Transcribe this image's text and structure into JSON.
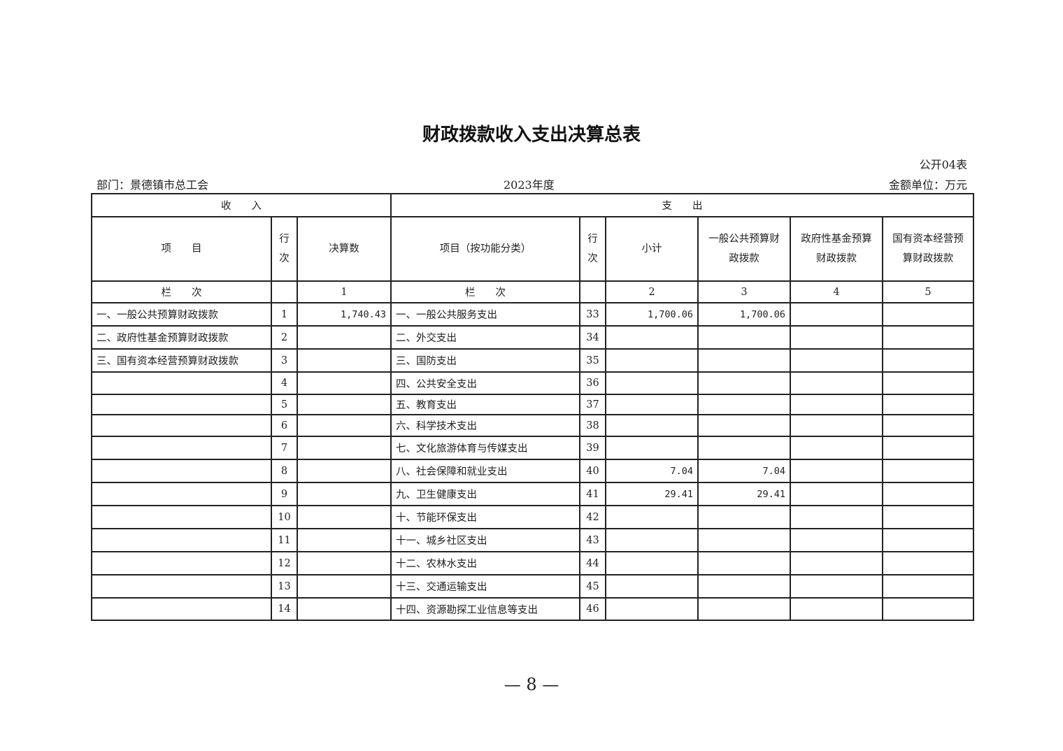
{
  "title": "财政拨款收入支出决算总表",
  "form_no": "公开04表",
  "department": "部门：景德镇市总工会",
  "year": "2023年度",
  "unit": "金额单位：万元",
  "header": {
    "income": "收　　入",
    "expense": "支　　出",
    "income_item": "项　　目",
    "row_no": "行次",
    "final_amount": "决算数",
    "expense_item": "项目（按功能分类）",
    "subtotal": "小计",
    "general_budget": "一般公共预算财政拨款",
    "gov_fund": "政府性基金预算财政拨款",
    "state_capital": "国有资本经营预算财政拨款",
    "col_label": "栏　　次",
    "col1": "1",
    "col2": "2",
    "col3": "3",
    "col4": "4",
    "col5": "5"
  },
  "rows": [
    {
      "income_item": "一、一般公共预算财政拨款",
      "income_no": "1",
      "income_amount": "1,740.43",
      "expense_item": "一、一般公共服务支出",
      "expense_no": "33",
      "subtotal": "1,700.06",
      "general": "1,700.06",
      "fund": "",
      "capital": ""
    },
    {
      "income_item": "二、政府性基金预算财政拨款",
      "income_no": "2",
      "income_amount": "",
      "expense_item": "二、外交支出",
      "expense_no": "34",
      "subtotal": "",
      "general": "",
      "fund": "",
      "capital": ""
    },
    {
      "income_item": "三、国有资本经营预算财政拨款",
      "income_no": "3",
      "income_amount": "",
      "expense_item": "三、国防支出",
      "expense_no": "35",
      "subtotal": "",
      "general": "",
      "fund": "",
      "capital": ""
    },
    {
      "income_item": "",
      "income_no": "4",
      "income_amount": "",
      "expense_item": "四、公共安全支出",
      "expense_no": "36",
      "subtotal": "",
      "general": "",
      "fund": "",
      "capital": ""
    },
    {
      "income_item": "",
      "income_no": "5",
      "income_amount": "",
      "expense_item": "五、教育支出",
      "expense_no": "37",
      "subtotal": "",
      "general": "",
      "fund": "",
      "capital": ""
    },
    {
      "income_item": "",
      "income_no": "6",
      "income_amount": "",
      "expense_item": "六、科学技术支出",
      "expense_no": "38",
      "subtotal": "",
      "general": "",
      "fund": "",
      "capital": ""
    },
    {
      "income_item": "",
      "income_no": "7",
      "income_amount": "",
      "expense_item": "七、文化旅游体育与传媒支出",
      "expense_no": "39",
      "subtotal": "",
      "general": "",
      "fund": "",
      "capital": ""
    },
    {
      "income_item": "",
      "income_no": "8",
      "income_amount": "",
      "expense_item": "八、社会保障和就业支出",
      "expense_no": "40",
      "subtotal": "7.04",
      "general": "7.04",
      "fund": "",
      "capital": ""
    },
    {
      "income_item": "",
      "income_no": "9",
      "income_amount": "",
      "expense_item": "九、卫生健康支出",
      "expense_no": "41",
      "subtotal": "29.41",
      "general": "29.41",
      "fund": "",
      "capital": ""
    },
    {
      "income_item": "",
      "income_no": "10",
      "income_amount": "",
      "expense_item": "十、节能环保支出",
      "expense_no": "42",
      "subtotal": "",
      "general": "",
      "fund": "",
      "capital": ""
    },
    {
      "income_item": "",
      "income_no": "11",
      "income_amount": "",
      "expense_item": "十一、城乡社区支出",
      "expense_no": "43",
      "subtotal": "",
      "general": "",
      "fund": "",
      "capital": ""
    },
    {
      "income_item": "",
      "income_no": "12",
      "income_amount": "",
      "expense_item": "十二、农林水支出",
      "expense_no": "44",
      "subtotal": "",
      "general": "",
      "fund": "",
      "capital": ""
    },
    {
      "income_item": "",
      "income_no": "13",
      "income_amount": "",
      "expense_item": "十三、交通运输支出",
      "expense_no": "45",
      "subtotal": "",
      "general": "",
      "fund": "",
      "capital": ""
    },
    {
      "income_item": "",
      "income_no": "14",
      "income_amount": "",
      "expense_item": "十四、资源勘探工业信息等支出",
      "expense_no": "46",
      "subtotal": "",
      "general": "",
      "fund": "",
      "capital": ""
    }
  ],
  "page_number": "— 8 —"
}
